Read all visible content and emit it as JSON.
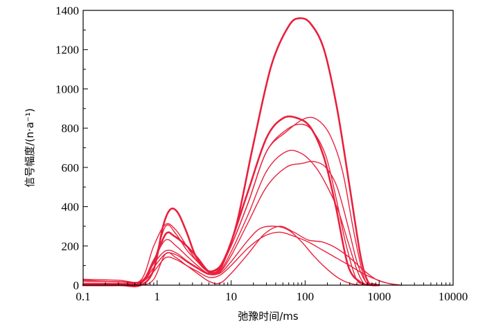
{
  "chart_data": {
    "type": "line",
    "title": "",
    "xlabel": "弛豫时间/ms",
    "ylabel": "信号幅度/(n·a⁻¹)",
    "x_scale": "log",
    "xlim": [
      0.1,
      10000
    ],
    "ylim": [
      0,
      1400
    ],
    "x_ticks": [
      0.1,
      1,
      10,
      100,
      1000,
      10000
    ],
    "x_tick_labels": [
      "0.1",
      "1",
      "10",
      "100",
      "1000",
      "10000"
    ],
    "y_ticks": [
      0,
      200,
      400,
      600,
      800,
      1000,
      1200,
      1400
    ],
    "y_tick_labels": [
      "0",
      "200",
      "400",
      "600",
      "800",
      "1000",
      "1200",
      "1400"
    ],
    "grid": false,
    "legend": "none",
    "color": "#e8203c",
    "series": [
      {
        "x": [
          0.1,
          0.3,
          0.6,
          0.9,
          1.2,
          1.5,
          1.9,
          2.5,
          3.3,
          4.5,
          6,
          8,
          12,
          20,
          35,
          60,
          85,
          120,
          180,
          270,
          400,
          560,
          700,
          850,
          1000
        ],
        "y": [
          0,
          0,
          0,
          80,
          300,
          385,
          370,
          270,
          150,
          80,
          75,
          130,
          320,
          720,
          1120,
          1320,
          1360,
          1330,
          1200,
          900,
          500,
          150,
          20,
          5,
          0
        ],
        "bold": true
      },
      {
        "x": [
          0.1,
          0.3,
          0.6,
          0.9,
          1.3,
          1.7,
          2.5,
          3.5,
          5,
          7,
          10,
          17,
          30,
          50,
          80,
          120,
          180,
          260,
          380,
          560,
          800,
          1000
        ],
        "y": [
          0,
          0,
          10,
          120,
          260,
          250,
          200,
          140,
          70,
          80,
          220,
          480,
          750,
          850,
          850,
          800,
          650,
          400,
          100,
          15,
          0,
          0
        ],
        "bold": true
      },
      {
        "x": [
          0.1,
          0.3,
          0.6,
          0.9,
          1.3,
          1.8,
          2.5,
          3.5,
          5,
          7,
          10,
          17,
          30,
          55,
          90,
          130,
          190,
          260,
          350,
          480,
          600,
          800
        ],
        "y": [
          25,
          18,
          25,
          200,
          310,
          280,
          200,
          120,
          70,
          90,
          200,
          420,
          680,
          790,
          820,
          780,
          660,
          450,
          220,
          40,
          5,
          0
        ]
      },
      {
        "x": [
          0.1,
          0.3,
          0.6,
          0.9,
          1.3,
          1.8,
          2.5,
          3.5,
          5,
          7,
          10,
          17,
          30,
          55,
          100,
          150,
          220,
          320,
          450,
          600,
          700
        ],
        "y": [
          10,
          10,
          15,
          130,
          230,
          200,
          150,
          100,
          60,
          85,
          200,
          420,
          680,
          780,
          850,
          840,
          760,
          580,
          280,
          60,
          0
        ]
      },
      {
        "x": [
          0.1,
          0.3,
          0.6,
          0.9,
          1.3,
          1.8,
          2.5,
          3.5,
          5,
          7,
          10,
          17,
          30,
          55,
          90,
          140,
          200,
          280,
          380,
          500,
          620,
          800
        ],
        "y": [
          5,
          5,
          10,
          110,
          175,
          165,
          125,
          90,
          55,
          70,
          170,
          360,
          580,
          680,
          670,
          600,
          500,
          380,
          220,
          80,
          10,
          0
        ]
      },
      {
        "x": [
          0.1,
          0.3,
          0.6,
          0.9,
          1.3,
          1.8,
          2.5,
          3.5,
          5,
          7,
          10,
          17,
          30,
          55,
          90,
          130,
          190,
          270,
          380,
          500,
          650,
          800
        ],
        "y": [
          5,
          5,
          10,
          90,
          160,
          155,
          120,
          85,
          55,
          65,
          150,
          320,
          500,
          600,
          620,
          630,
          600,
          500,
          300,
          120,
          20,
          0
        ]
      },
      {
        "x": [
          0.1,
          0.3,
          0.6,
          0.9,
          1.3,
          1.8,
          2.5,
          3.5,
          5,
          7,
          10,
          17,
          25,
          40,
          60,
          90,
          130,
          200,
          300,
          450,
          700
        ],
        "y": [
          30,
          25,
          20,
          120,
          300,
          260,
          180,
          120,
          65,
          60,
          120,
          230,
          290,
          300,
          280,
          220,
          150,
          80,
          30,
          5,
          0
        ]
      },
      {
        "x": [
          0.1,
          0.3,
          0.6,
          0.9,
          1.3,
          1.8,
          2.5,
          3.5,
          5,
          7,
          10,
          17,
          28,
          45,
          70,
          110,
          170,
          260,
          400,
          600,
          900,
          1300,
          1800
        ],
        "y": [
          20,
          18,
          15,
          70,
          140,
          130,
          100,
          70,
          40,
          50,
          100,
          190,
          250,
          270,
          250,
          220,
          180,
          140,
          100,
          60,
          30,
          10,
          0
        ]
      },
      {
        "x": [
          0.1,
          0.3,
          0.6,
          0.9,
          1.3,
          1.8,
          2.5,
          3.5,
          5,
          7,
          10,
          17,
          28,
          45,
          70,
          110,
          170,
          260,
          400,
          600,
          900,
          1300,
          2000
        ],
        "y": [
          0,
          0,
          0,
          30,
          160,
          140,
          100,
          60,
          20,
          10,
          60,
          160,
          260,
          300,
          270,
          230,
          220,
          190,
          140,
          80,
          30,
          10,
          0
        ]
      }
    ]
  }
}
